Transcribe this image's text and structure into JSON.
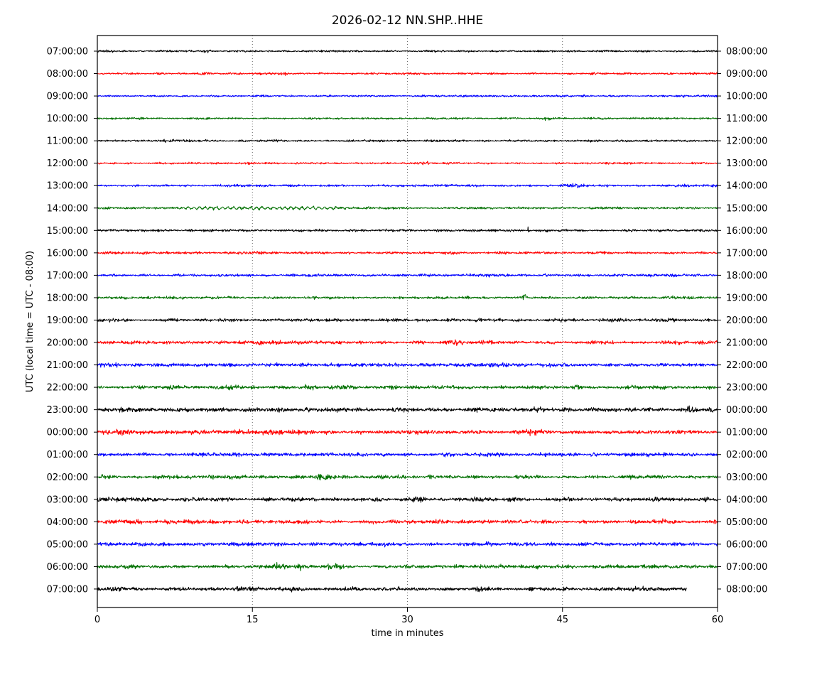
{
  "chart_data": {
    "type": "line",
    "variant": "seismogram-dayplot",
    "title": "2026-02-12 NN.SHP..HHE",
    "xlabel": "time in minutes",
    "ylabel": "UTC (local time = UTC - 08:00)",
    "xlim": [
      0,
      60
    ],
    "xticks": [
      0,
      15,
      30,
      45,
      60
    ],
    "grid": {
      "vertical_dotted_at": [
        15,
        30,
        45
      ]
    },
    "legend": "none",
    "trace_colors": {
      "black": "#000000",
      "red": "#ff0000",
      "blue": "#0000ff",
      "green": "#007000"
    },
    "minutes_per_row": 60,
    "rows": [
      {
        "left_label": "07:00:00",
        "right_label": "08:00:00",
        "color": "black",
        "noise": 1.1,
        "events": [
          {
            "m": 10.8,
            "w": 0.5,
            "a": 1.4
          },
          {
            "m": 18.3,
            "w": 0.6,
            "a": 0.8
          }
        ]
      },
      {
        "left_label": "08:00:00",
        "right_label": "09:00:00",
        "color": "red",
        "noise": 1.2,
        "events": [
          {
            "m": 10.5,
            "w": 0.5,
            "a": 1.1
          },
          {
            "m": 18.0,
            "w": 0.5,
            "a": 0.7
          }
        ]
      },
      {
        "left_label": "09:00:00",
        "right_label": "10:00:00",
        "color": "blue",
        "noise": 1.1,
        "events": [
          {
            "m": 35.2,
            "w": 0.4,
            "a": 1.1
          }
        ]
      },
      {
        "left_label": "10:00:00",
        "right_label": "11:00:00",
        "color": "green",
        "noise": 1.1,
        "events": [
          {
            "m": 43.5,
            "w": 0.4,
            "a": 0.9
          }
        ]
      },
      {
        "left_label": "11:00:00",
        "right_label": "12:00:00",
        "color": "black",
        "noise": 1.2,
        "events": [
          {
            "m": 6.0,
            "w": 1.5,
            "a": 0.4
          },
          {
            "m": 17.0,
            "w": 0.9,
            "a": 0.5
          }
        ]
      },
      {
        "left_label": "12:00:00",
        "right_label": "13:00:00",
        "color": "red",
        "noise": 1.2,
        "events": [
          {
            "m": 31.8,
            "w": 0.4,
            "a": 0.9
          }
        ]
      },
      {
        "left_label": "13:00:00",
        "right_label": "14:00:00",
        "color": "blue",
        "noise": 1.2,
        "events": [
          {
            "m": 46.5,
            "w": 1.3,
            "a": 1.1
          },
          {
            "m": 56.5,
            "w": 0.7,
            "a": 1.4
          }
        ]
      },
      {
        "left_label": "14:00:00",
        "right_label": "15:00:00",
        "color": "green",
        "noise": 1.3,
        "wiggle": {
          "from": 7,
          "to": 25,
          "period": 0.55,
          "amp": 1.6
        },
        "events": []
      },
      {
        "left_label": "15:00:00",
        "right_label": "16:00:00",
        "color": "black",
        "noise": 1.4,
        "events": [
          {
            "m": 41.7,
            "w": 0.15,
            "a": 4.5
          }
        ]
      },
      {
        "left_label": "16:00:00",
        "right_label": "17:00:00",
        "color": "red",
        "noise": 1.5,
        "events": []
      },
      {
        "left_label": "17:00:00",
        "right_label": "18:00:00",
        "color": "blue",
        "noise": 1.5,
        "events": []
      },
      {
        "left_label": "18:00:00",
        "right_label": "19:00:00",
        "color": "green",
        "noise": 1.5,
        "events": [
          {
            "m": 41.3,
            "w": 0.18,
            "a": 4.0
          }
        ]
      },
      {
        "left_label": "19:00:00",
        "right_label": "20:00:00",
        "color": "black",
        "noise": 1.7,
        "events": [
          {
            "m": 46.0,
            "w": 1.0,
            "a": 0.5
          },
          {
            "m": 49.5,
            "w": 0.9,
            "a": 0.5
          }
        ]
      },
      {
        "left_label": "20:00:00",
        "right_label": "21:00:00",
        "color": "red",
        "noise": 1.9,
        "events": [
          {
            "m": 17.0,
            "w": 0.9,
            "a": 0.6
          },
          {
            "m": 35.3,
            "w": 0.9,
            "a": 0.5
          }
        ]
      },
      {
        "left_label": "21:00:00",
        "right_label": "22:00:00",
        "color": "blue",
        "noise": 2.1,
        "events": [
          {
            "m": 1.0,
            "w": 1.0,
            "a": 0.6
          },
          {
            "m": 20.0,
            "w": 0.9,
            "a": 0.4
          },
          {
            "m": 43.5,
            "w": 0.8,
            "a": 0.5
          }
        ]
      },
      {
        "left_label": "22:00:00",
        "right_label": "23:00:00",
        "color": "green",
        "noise": 2.1,
        "events": [
          {
            "m": 13.0,
            "w": 0.8,
            "a": 0.5
          },
          {
            "m": 20.5,
            "w": 0.8,
            "a": 0.6
          },
          {
            "m": 42.0,
            "w": 0.9,
            "a": 0.4
          }
        ]
      },
      {
        "left_label": "23:00:00",
        "right_label": "00:00:00",
        "color": "black",
        "noise": 2.3,
        "events": [
          {
            "m": 38.5,
            "w": 0.7,
            "a": 0.7
          },
          {
            "m": 42.5,
            "w": 0.6,
            "a": 0.5
          },
          {
            "m": 49.7,
            "w": 0.9,
            "a": 0.6
          },
          {
            "m": 57.5,
            "w": 0.8,
            "a": 0.7
          }
        ]
      },
      {
        "left_label": "00:00:00",
        "right_label": "01:00:00",
        "color": "red",
        "noise": 2.3,
        "events": [
          {
            "m": 2.5,
            "w": 0.9,
            "a": 0.9
          },
          {
            "m": 17.3,
            "w": 0.7,
            "a": 1.3
          },
          {
            "m": 42.5,
            "w": 0.9,
            "a": 0.7
          }
        ]
      },
      {
        "left_label": "01:00:00",
        "right_label": "02:00:00",
        "color": "blue",
        "noise": 2.1,
        "events": []
      },
      {
        "left_label": "02:00:00",
        "right_label": "03:00:00",
        "color": "green",
        "noise": 2.1,
        "events": [
          {
            "m": 12.5,
            "w": 0.9,
            "a": 0.5
          },
          {
            "m": 22.0,
            "w": 0.9,
            "a": 0.4
          }
        ]
      },
      {
        "left_label": "03:00:00",
        "right_label": "04:00:00",
        "color": "black",
        "noise": 2.3,
        "events": [
          {
            "m": 31.5,
            "w": 1.1,
            "a": 0.4
          }
        ]
      },
      {
        "left_label": "04:00:00",
        "right_label": "05:00:00",
        "color": "red",
        "noise": 2.3,
        "events": [
          {
            "m": 53.5,
            "w": 0.9,
            "a": 0.6
          }
        ]
      },
      {
        "left_label": "05:00:00",
        "right_label": "06:00:00",
        "color": "blue",
        "noise": 2.1,
        "events": [
          {
            "m": 2.0,
            "w": 0.9,
            "a": 0.5
          }
        ]
      },
      {
        "left_label": "06:00:00",
        "right_label": "07:00:00",
        "color": "green",
        "noise": 2.1,
        "events": [
          {
            "m": 17.5,
            "w": 0.8,
            "a": 1.2
          },
          {
            "m": 19.7,
            "w": 0.6,
            "a": 0.7
          },
          {
            "m": 23.0,
            "w": 0.7,
            "a": 0.5
          }
        ]
      },
      {
        "left_label": "07:00:00",
        "right_label": "08:00:00",
        "color": "black",
        "noise": 2.3,
        "end_minute": 57,
        "events": []
      }
    ]
  }
}
